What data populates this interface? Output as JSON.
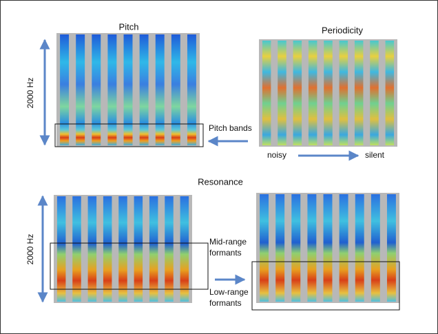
{
  "pitch": {
    "title": "Pitch",
    "axis_label": "2000 Hz",
    "annotation": "Pitch bands"
  },
  "periodicity": {
    "title": "Periodicity",
    "x_start": "noisy",
    "x_end": "silent"
  },
  "resonance": {
    "title": "Resonance",
    "axis_label": "2000 Hz",
    "annotations": [
      [
        "Mid-range",
        "formants"
      ],
      [
        "Low-range",
        "formants"
      ]
    ]
  }
}
